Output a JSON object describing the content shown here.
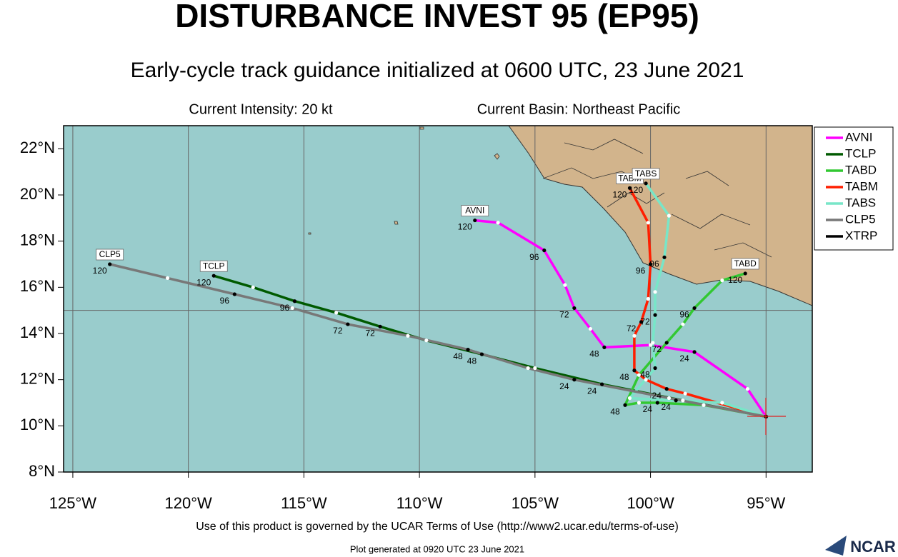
{
  "chart_data": {
    "type": "track",
    "title": "DISTURBANCE INVEST 95 (EP95)",
    "subtitle": "Early-cycle track guidance initialized at 0600 UTC, 23 June 2021",
    "intensity": "Current Intensity: 20 kt",
    "basin": "Current Basin: Northeast Pacific",
    "terms": "Use of this product is governed by the UCAR Terms of Use (http://www2.ucar.edu/terms-of-use)",
    "generated": "Plot generated at 0920 UTC  23 June 2021",
    "logo": "NCAR",
    "xlim": [
      -125.4,
      -93.0
    ],
    "ylim": [
      8,
      23.0
    ],
    "xticks": [
      {
        "value": -125,
        "label": "125°W"
      },
      {
        "value": -120,
        "label": "120°W"
      },
      {
        "value": -115,
        "label": "115°W"
      },
      {
        "value": -110,
        "label": "110°W"
      },
      {
        "value": -105,
        "label": "105°W"
      },
      {
        "value": -100,
        "label": "100°W"
      },
      {
        "value": -95,
        "label": "95°W"
      }
    ],
    "yticks": [
      {
        "value": 8,
        "label": "8°N"
      },
      {
        "value": 10,
        "label": "10°N"
      },
      {
        "value": 12,
        "label": "12°N"
      },
      {
        "value": 14,
        "label": "14°N"
      },
      {
        "value": 16,
        "label": "16°N"
      },
      {
        "value": 18,
        "label": "18°N"
      },
      {
        "value": 20,
        "label": "20°N"
      },
      {
        "value": 22,
        "label": "22°N"
      }
    ],
    "ygrid": [
      15
    ],
    "grid": true,
    "legend": "right",
    "point_labels": [
      null,
      null,
      "24",
      null,
      "48",
      null,
      "72",
      null,
      "96",
      null,
      "120"
    ],
    "series": [
      {
        "name": "AVNI",
        "color": "#ff00ff",
        "x": [
          -95.0,
          -95.8,
          -98.1,
          -100.0,
          -102.0,
          -102.6,
          -103.3,
          -103.7,
          -104.6,
          -106.6,
          -107.6
        ],
        "values": [
          10.4,
          11.6,
          13.2,
          13.5,
          13.4,
          14.2,
          15.1,
          16.1,
          17.6,
          18.8,
          18.9
        ]
      },
      {
        "name": "TCLP",
        "color": "#005a00",
        "x": [
          -95.0,
          -98.6,
          -102.1,
          -105.0,
          -107.3,
          -109.7,
          -111.7,
          -113.6,
          -115.4,
          -117.2,
          -118.9
        ],
        "values": [
          10.4,
          11.1,
          11.8,
          12.5,
          13.1,
          13.7,
          14.3,
          14.9,
          15.4,
          16.0,
          16.5
        ]
      },
      {
        "name": "TABD",
        "color": "#32c832",
        "x": [
          -95.0,
          -97.7,
          -99.7,
          -100.5,
          -101.1,
          -100.5,
          -99.3,
          -98.6,
          -98.1,
          -96.9,
          -95.9
        ],
        "values": [
          10.4,
          10.9,
          11.0,
          11.0,
          10.9,
          12.2,
          13.6,
          14.4,
          15.1,
          16.3,
          16.6
        ]
      },
      {
        "name": "TABM",
        "color": "#ff1e00",
        "x": [
          -95.0,
          -98.5,
          -99.3,
          -100.2,
          -100.7,
          -100.7,
          -100.4,
          -100.1,
          -100.0,
          -100.1,
          -100.9
        ],
        "values": [
          10.4,
          11.4,
          11.6,
          12.0,
          12.4,
          13.9,
          14.5,
          15.5,
          17.0,
          18.8,
          20.3
        ]
      },
      {
        "name": "TABS",
        "color": "#78e6c8",
        "x": [
          -95.0,
          -96.9,
          -98.9,
          -100.9,
          -99.8,
          -99.9,
          -99.8,
          -99.8,
          -99.4,
          -99.2,
          -100.2
        ],
        "values": [
          10.4,
          11.0,
          11.1,
          11.2,
          12.5,
          13.6,
          14.8,
          15.8,
          17.3,
          19.1,
          20.5
        ]
      },
      {
        "name": "CLP5",
        "color": "#787878",
        "x": [
          -95.0,
          -99.2,
          -103.3,
          -105.3,
          -107.9,
          -110.5,
          -113.1,
          -115.5,
          -118.0,
          -120.9,
          -123.4
        ],
        "values": [
          10.4,
          11.2,
          12.0,
          12.5,
          13.3,
          13.9,
          14.4,
          15.1,
          15.7,
          16.4,
          17.0
        ]
      },
      {
        "name": "XTRP",
        "color": "#000000",
        "x": [
          -95.0
        ],
        "values": [
          10.4
        ]
      }
    ]
  }
}
